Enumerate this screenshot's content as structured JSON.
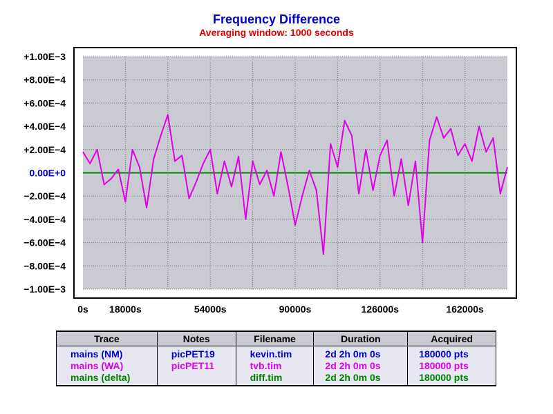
{
  "chart_data": {
    "type": "line",
    "title": "Frequency Difference",
    "subtitle": "Averaging window: 1000 seconds",
    "xlabel": "",
    "ylabel": "",
    "xlim": [
      0,
      180000
    ],
    "ylim": [
      -0.001,
      0.001
    ],
    "x_ticks": [
      0,
      18000,
      54000,
      90000,
      126000,
      162000
    ],
    "x_tick_labels": [
      "0s",
      "18000s",
      "54000s",
      "90000s",
      "126000s",
      "162000s"
    ],
    "y_ticks": [
      0.001,
      0.0008,
      0.0006,
      0.0004,
      0.0002,
      0,
      -0.0002,
      -0.0004,
      -0.0006,
      -0.0008,
      -0.001
    ],
    "y_tick_labels": [
      "+1.00E−3",
      "+8.00E−4",
      "+6.00E−4",
      "+4.00E−4",
      "+2.00E−4",
      "0.00E+0",
      "−2.00E−4",
      "−4.00E−4",
      "−6.00E−4",
      "−8.00E−4",
      "−1.00E−3"
    ],
    "grid": true,
    "colors": {
      "plot_bg": "#c9cad2",
      "wa": "#e000e8",
      "delta": "#008000",
      "zero_label": "#0000d0",
      "title": "#0000d0",
      "subtitle": "#e00000"
    },
    "series": [
      {
        "name": "mains (WA)",
        "x": [
          0,
          3000,
          6000,
          9000,
          12000,
          15000,
          18000,
          21000,
          24000,
          27000,
          30000,
          33000,
          36000,
          39000,
          42000,
          45000,
          48000,
          51000,
          54000,
          57000,
          60000,
          63000,
          66000,
          69000,
          72000,
          75000,
          78000,
          81000,
          84000,
          87000,
          90000,
          93000,
          96000,
          99000,
          102000,
          105000,
          108000,
          111000,
          114000,
          117000,
          120000,
          123000,
          126000,
          129000,
          132000,
          135000,
          138000,
          141000,
          144000,
          147000,
          150000,
          153000,
          156000,
          159000,
          162000,
          165000,
          168000,
          171000,
          174000,
          177000,
          180000
        ],
        "y": [
          0.00018,
          8e-05,
          0.0002,
          -0.0001,
          -5e-05,
          3e-05,
          -0.00025,
          0.0002,
          5e-05,
          -0.0003,
          0.00012,
          0.00032,
          0.0005,
          0.0001,
          0.00015,
          -0.00022,
          -8e-05,
          8e-05,
          0.0002,
          -0.00018,
          0.0001,
          -0.00012,
          0.00014,
          -0.0004,
          0.0001,
          -0.0001,
          2e-05,
          -0.0002,
          0.00018,
          -0.00012,
          -0.00045,
          -0.0002,
          2e-05,
          -0.00015,
          -0.0007,
          0.00025,
          5e-05,
          0.00045,
          0.00032,
          -0.00018,
          0.0002,
          -0.00015,
          0.00015,
          0.00028,
          -0.0002,
          0.00012,
          -0.00028,
          0.0001,
          -0.0006,
          0.00028,
          0.00048,
          0.0003,
          0.00038,
          0.00015,
          0.00025,
          0.0001,
          0.0004,
          0.00018,
          0.0003,
          -0.00018,
          5e-05
        ]
      },
      {
        "name": "mains (delta)",
        "x": [
          0,
          180000
        ],
        "y": [
          0,
          0
        ]
      }
    ]
  },
  "table": {
    "headers": [
      "Trace",
      "Notes",
      "Filename",
      "Duration",
      "Acquired"
    ],
    "rows": [
      {
        "trace": "mains (NM)",
        "notes": "picPET19",
        "filename": "kevin.tim",
        "duration": "2d 2h 0m 0s",
        "acquired": "180000 pts",
        "color": "#0000d0"
      },
      {
        "trace": "mains (WA)",
        "notes": "picPET11",
        "filename": "tvb.tim",
        "duration": "2d 2h 0m 0s",
        "acquired": "180000 pts",
        "color": "#e000e8"
      },
      {
        "trace": "mains (delta)",
        "notes": "",
        "filename": "diff.tim",
        "duration": "2d 2h 0m 0s",
        "acquired": "180000 pts",
        "color": "#008000"
      }
    ]
  }
}
